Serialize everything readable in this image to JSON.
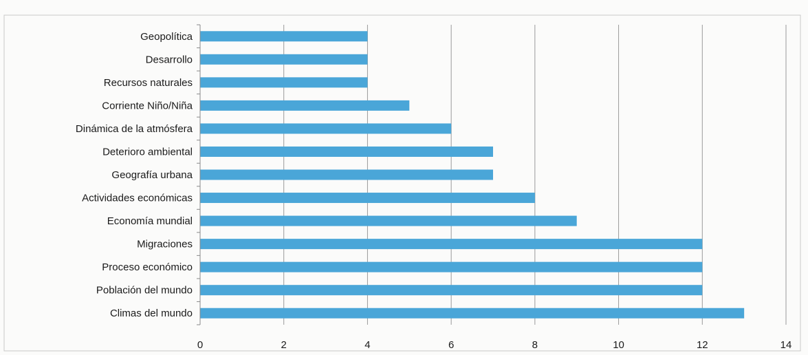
{
  "chart_data": {
    "type": "bar",
    "orientation": "horizontal",
    "categories": [
      "Geopolítica",
      "Desarrollo",
      "Recursos naturales",
      "Corriente Niño/Niña",
      "Dinámica de la atmósfera",
      "Deterioro ambiental",
      "Geografía urbana",
      "Actividades económicas",
      "Economía mundial",
      "Migraciones",
      "Proceso económico",
      "Población del mundo",
      "Climas del mundo"
    ],
    "values": [
      4,
      4,
      4,
      5,
      6,
      7,
      7,
      8,
      9,
      12,
      12,
      12,
      13
    ],
    "title": "",
    "xlabel": "",
    "ylabel": "",
    "xlim": [
      0,
      14
    ],
    "xticks": [
      "0",
      "2",
      "4",
      "6",
      "8",
      "10",
      "12",
      "14"
    ],
    "grid": "vertical",
    "legend": "none",
    "colors": {
      "bar": "#4aa6d8",
      "grid": "#9a9a9a",
      "axis": "#8a8a8a",
      "border": "#c8c8c8"
    }
  }
}
